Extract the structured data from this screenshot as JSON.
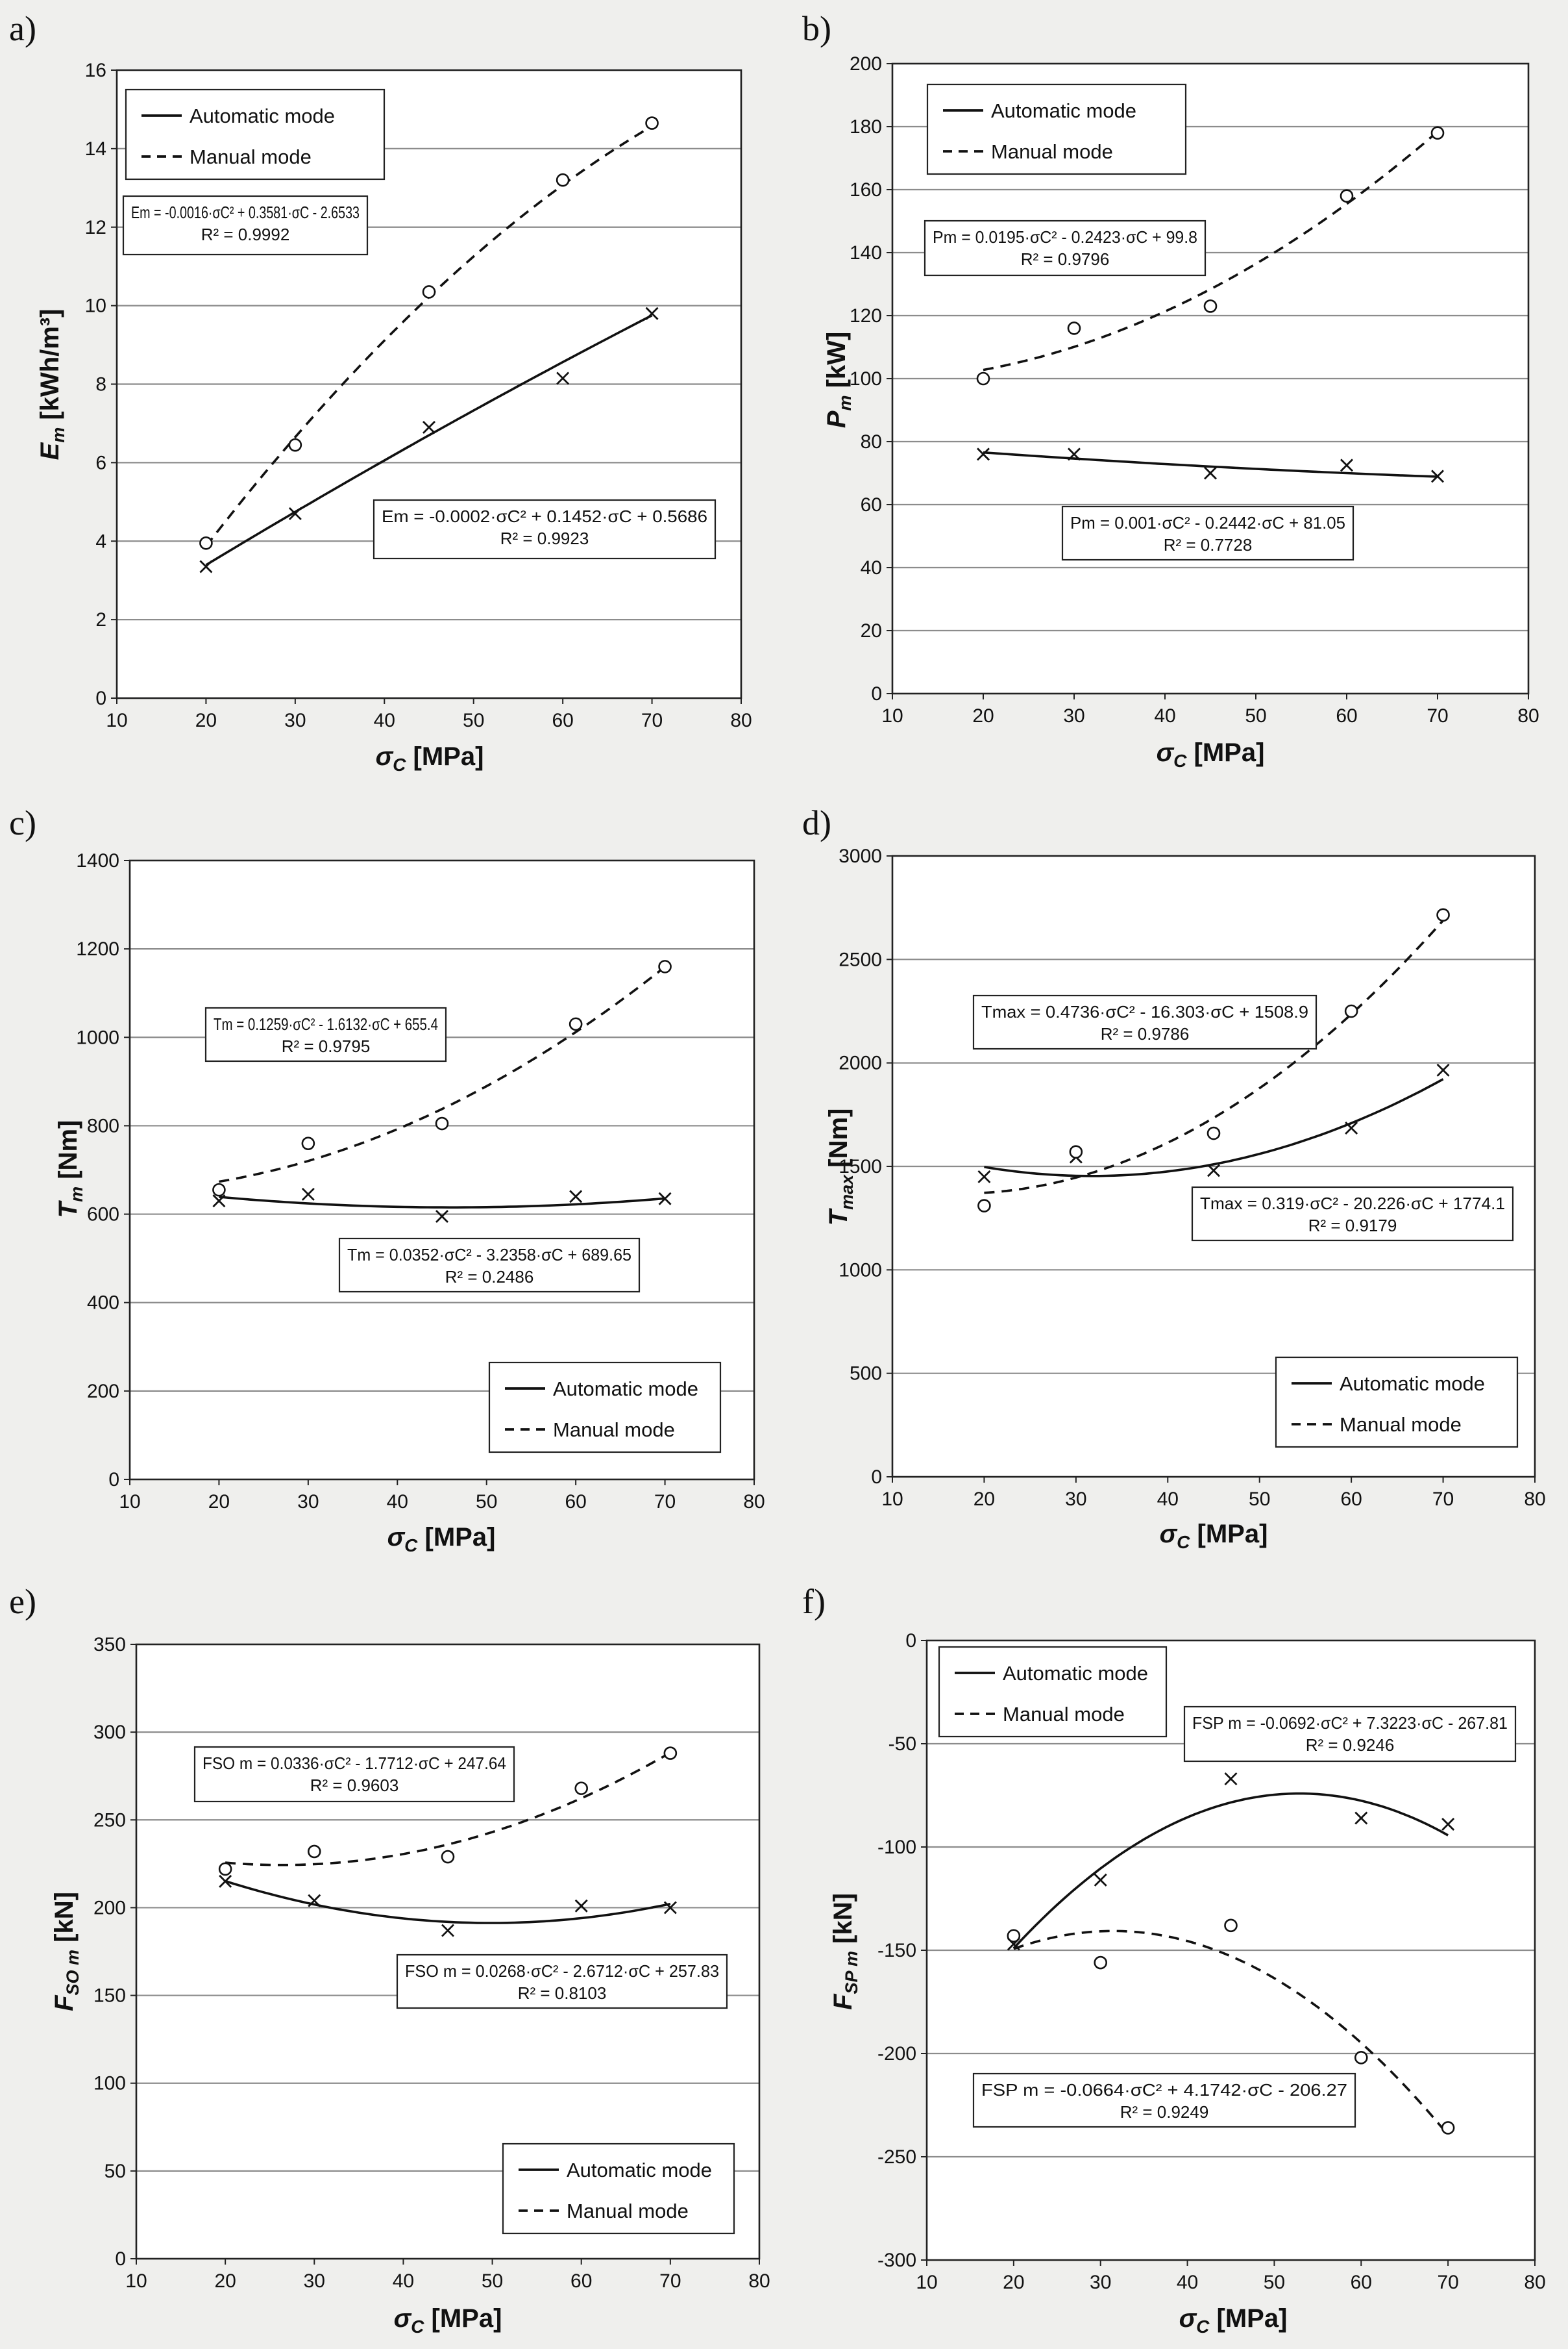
{
  "legend": {
    "automatic": "Automatic mode",
    "manual": "Manual mode"
  },
  "chart_data": [
    {
      "panel": "a)",
      "type": "scatter",
      "ylabel": {
        "sym": "E",
        "sub": "m",
        "unit": " [kWh/m³]"
      },
      "xlabel": {
        "sym": "σ",
        "sub": "C",
        "unit": " [MPa]"
      },
      "xlim": [
        10,
        80
      ],
      "xticks": [
        10,
        20,
        30,
        40,
        50,
        60,
        70,
        80
      ],
      "ylim": [
        0,
        16
      ],
      "yticks": [
        0,
        2,
        4,
        6,
        8,
        10,
        12,
        14,
        16
      ],
      "x": [
        20,
        30,
        45,
        60,
        70
      ],
      "series": [
        {
          "name": "Automatic mode",
          "marker": "x",
          "values": [
            3.35,
            4.7,
            6.9,
            8.15,
            9.8
          ],
          "coef": [
            -0.0002,
            0.1452,
            0.5686
          ]
        },
        {
          "name": "Manual mode",
          "marker": "o",
          "values": [
            3.95,
            6.45,
            10.35,
            13.2,
            14.65
          ],
          "coef": [
            -0.0016,
            0.3581,
            -2.6533
          ]
        }
      ],
      "equations": [
        {
          "series": "Manual mode",
          "line1": "Em = -0.0016·σC² + 0.3581·σC - 2.6533",
          "line2": "R² = 0.9992"
        },
        {
          "series": "Automatic mode",
          "line1": "Em = -0.0002·σC² + 0.1452·σC + 0.5686",
          "line2": "R² = 0.9923"
        }
      ],
      "legend_position": "top-left"
    },
    {
      "panel": "b)",
      "type": "scatter",
      "ylabel": {
        "sym": "P",
        "sub": "m",
        "unit": " [kW]"
      },
      "xlabel": {
        "sym": "σ",
        "sub": "C",
        "unit": " [MPa]"
      },
      "xlim": [
        10,
        80
      ],
      "xticks": [
        10,
        20,
        30,
        40,
        50,
        60,
        70,
        80
      ],
      "ylim": [
        0,
        200
      ],
      "yticks": [
        0,
        20,
        40,
        60,
        80,
        100,
        120,
        140,
        160,
        180,
        200
      ],
      "x": [
        20,
        30,
        45,
        60,
        70
      ],
      "series": [
        {
          "name": "Automatic mode",
          "marker": "x",
          "values": [
            76,
            76,
            70,
            72.5,
            69
          ],
          "coef": [
            0.001,
            -0.2442,
            81.05
          ]
        },
        {
          "name": "Manual mode",
          "marker": "o",
          "values": [
            100,
            116,
            123,
            158,
            178
          ],
          "coef": [
            0.0195,
            -0.2423,
            99.8
          ]
        }
      ],
      "equations": [
        {
          "series": "Manual mode",
          "line1": "Pm = 0.0195·σC² - 0.2423·σC + 99.8",
          "line2": "R² = 0.9796"
        },
        {
          "series": "Automatic mode",
          "line1": "Pm = 0.001·σC² - 0.2442·σC + 81.05",
          "line2": "R² = 0.7728"
        }
      ],
      "legend_position": "top-left"
    },
    {
      "panel": "c)",
      "type": "scatter",
      "ylabel": {
        "sym": "T",
        "sub": "m",
        "unit": " [Nm]"
      },
      "xlabel": {
        "sym": "σ",
        "sub": "C",
        "unit": " [MPa]"
      },
      "xlim": [
        10,
        80
      ],
      "xticks": [
        10,
        20,
        30,
        40,
        50,
        60,
        70,
        80
      ],
      "ylim": [
        0,
        1400
      ],
      "yticks": [
        0,
        200,
        400,
        600,
        800,
        1000,
        1200,
        1400
      ],
      "x": [
        20,
        30,
        45,
        60,
        70
      ],
      "series": [
        {
          "name": "Automatic mode",
          "marker": "x",
          "values": [
            630,
            645,
            595,
            640,
            635
          ],
          "coef": [
            0.0352,
            -3.2358,
            689.65
          ]
        },
        {
          "name": "Manual mode",
          "marker": "o",
          "values": [
            655,
            760,
            805,
            1030,
            1160
          ],
          "coef": [
            0.1259,
            -1.6132,
            655.4
          ]
        }
      ],
      "equations": [
        {
          "series": "Manual mode",
          "line1": "Tm = 0.1259·σC² - 1.6132·σC + 655.4",
          "line2": "R² = 0.9795"
        },
        {
          "series": "Automatic mode",
          "line1": "Tm = 0.0352·σC² - 3.2358·σC + 689.65",
          "line2": "R² = 0.2486"
        }
      ],
      "legend_position": "bottom-right"
    },
    {
      "panel": "d)",
      "type": "scatter",
      "ylabel": {
        "sym": "T",
        "sub": "max",
        "unit": " [Nm]"
      },
      "xlabel": {
        "sym": "σ",
        "sub": "C",
        "unit": " [MPa]"
      },
      "xlim": [
        10,
        80
      ],
      "xticks": [
        10,
        20,
        30,
        40,
        50,
        60,
        70,
        80
      ],
      "ylim": [
        0,
        3000
      ],
      "yticks": [
        0,
        500,
        1000,
        1500,
        2000,
        2500,
        3000
      ],
      "x": [
        20,
        30,
        45,
        60,
        70
      ],
      "series": [
        {
          "name": "Automatic mode",
          "marker": "x",
          "values": [
            1450,
            1545,
            1480,
            1685,
            1965
          ],
          "coef": [
            0.319,
            -20.226,
            1774.1
          ]
        },
        {
          "name": "Manual mode",
          "marker": "o",
          "values": [
            1310,
            1570,
            1660,
            2250,
            2715
          ],
          "coef": [
            0.4736,
            -16.303,
            1508.9
          ]
        }
      ],
      "equations": [
        {
          "series": "Manual mode",
          "line1": "Tmax = 0.4736·σC² - 16.303·σC + 1508.9",
          "line2": "R² = 0.9786"
        },
        {
          "series": "Automatic mode",
          "line1": "Tmax = 0.319·σC² - 20.226·σC + 1774.1",
          "line2": "R² = 0.9179"
        }
      ],
      "legend_position": "bottom-right"
    },
    {
      "panel": "e)",
      "type": "scatter",
      "ylabel": {
        "sym": "F",
        "sub": "SO m",
        "unit": " [kN]"
      },
      "xlabel": {
        "sym": "σ",
        "sub": "C",
        "unit": " [MPa]"
      },
      "xlim": [
        10,
        80
      ],
      "xticks": [
        10,
        20,
        30,
        40,
        50,
        60,
        70,
        80
      ],
      "ylim": [
        0,
        350
      ],
      "yticks": [
        0,
        50,
        100,
        150,
        200,
        250,
        300,
        350
      ],
      "x": [
        20,
        30,
        45,
        60,
        70
      ],
      "series": [
        {
          "name": "Automatic mode",
          "marker": "x",
          "values": [
            215,
            204,
            187,
            201,
            200
          ],
          "coef": [
            0.0268,
            -2.6712,
            257.83
          ]
        },
        {
          "name": "Manual mode",
          "marker": "o",
          "values": [
            222,
            232,
            229,
            268,
            288
          ],
          "coef": [
            0.0336,
            -1.7712,
            247.64
          ]
        }
      ],
      "equations": [
        {
          "series": "Manual mode",
          "line1": "FSO m = 0.0336·σC² - 1.7712·σC + 247.64",
          "line2": "R² = 0.9603"
        },
        {
          "series": "Automatic mode",
          "line1": "FSO m = 0.0268·σC² - 2.6712·σC + 257.83",
          "line2": "R² = 0.8103"
        }
      ],
      "legend_position": "bottom-right"
    },
    {
      "panel": "f)",
      "type": "scatter",
      "ylabel": {
        "sym": "F",
        "sub": "SP m",
        "unit": " [kN]"
      },
      "xlabel": {
        "sym": "σ",
        "sub": "C",
        "unit": " [MPa]"
      },
      "xlim": [
        10,
        80
      ],
      "xticks": [
        10,
        20,
        30,
        40,
        50,
        60,
        70,
        80
      ],
      "ylim": [
        -300,
        0
      ],
      "yticks": [
        -300,
        -250,
        -200,
        -150,
        -100,
        -50,
        0
      ],
      "x": [
        20,
        30,
        45,
        60,
        70
      ],
      "series": [
        {
          "name": "Automatic mode",
          "marker": "x",
          "values": [
            -147,
            -116,
            -67,
            -86,
            -89
          ],
          "coef": [
            -0.0692,
            7.3223,
            -267.81
          ]
        },
        {
          "name": "Manual mode",
          "marker": "o",
          "values": [
            -143,
            -156,
            -138,
            -202,
            -236
          ],
          "coef": [
            -0.0664,
            4.1742,
            -206.27
          ]
        }
      ],
      "equations": [
        {
          "series": "Automatic mode",
          "line1": "FSP m = -0.0692·σC² + 7.3223·σC - 267.81",
          "line2": "R² = 0.9246"
        },
        {
          "series": "Manual mode",
          "line1": "FSP m = -0.0664·σC² + 4.1742·σC - 206.27",
          "line2": "R² = 0.9249"
        }
      ],
      "legend_position": "top-left"
    }
  ]
}
